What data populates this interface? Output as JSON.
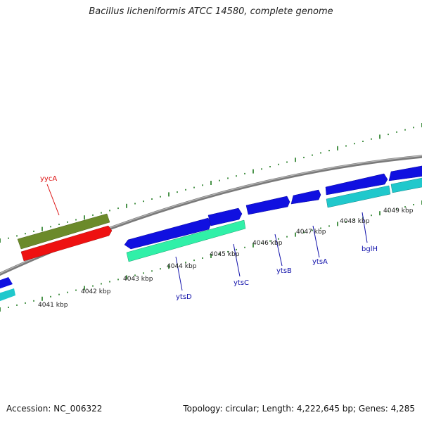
{
  "header": {
    "title": "Bacillus licheniformis ATCC 14580, complete genome"
  },
  "footer": {
    "accession": "Accession: NC_006322",
    "topology": "Topology: circular; Length: 4,222,645 bp; Genes: 4,285"
  },
  "ruler": {
    "ticks": [
      "4041 kbp",
      "4042 kbp",
      "4043 kbp",
      "4044 kbp",
      "4045 kbp",
      "4046 kbp",
      "4047 kbp",
      "4048 kbp",
      "4049 kbp"
    ]
  },
  "genes": {
    "labels": [
      "yycA",
      "ytsD",
      "ytsC",
      "ytsB",
      "ytsA",
      "bglH"
    ]
  },
  "colors": {
    "backbone": "#8a8a8a",
    "tick": "#1e7a1e",
    "gene_blue": "#1010e0",
    "gene_cyan": "#20c8cc",
    "gene_seagreen": "#30f0a8",
    "gene_olive": "#6b8a2a",
    "gene_red": "#ee1111",
    "label_red": "#dd1111",
    "label_blue": "#1010aa"
  }
}
